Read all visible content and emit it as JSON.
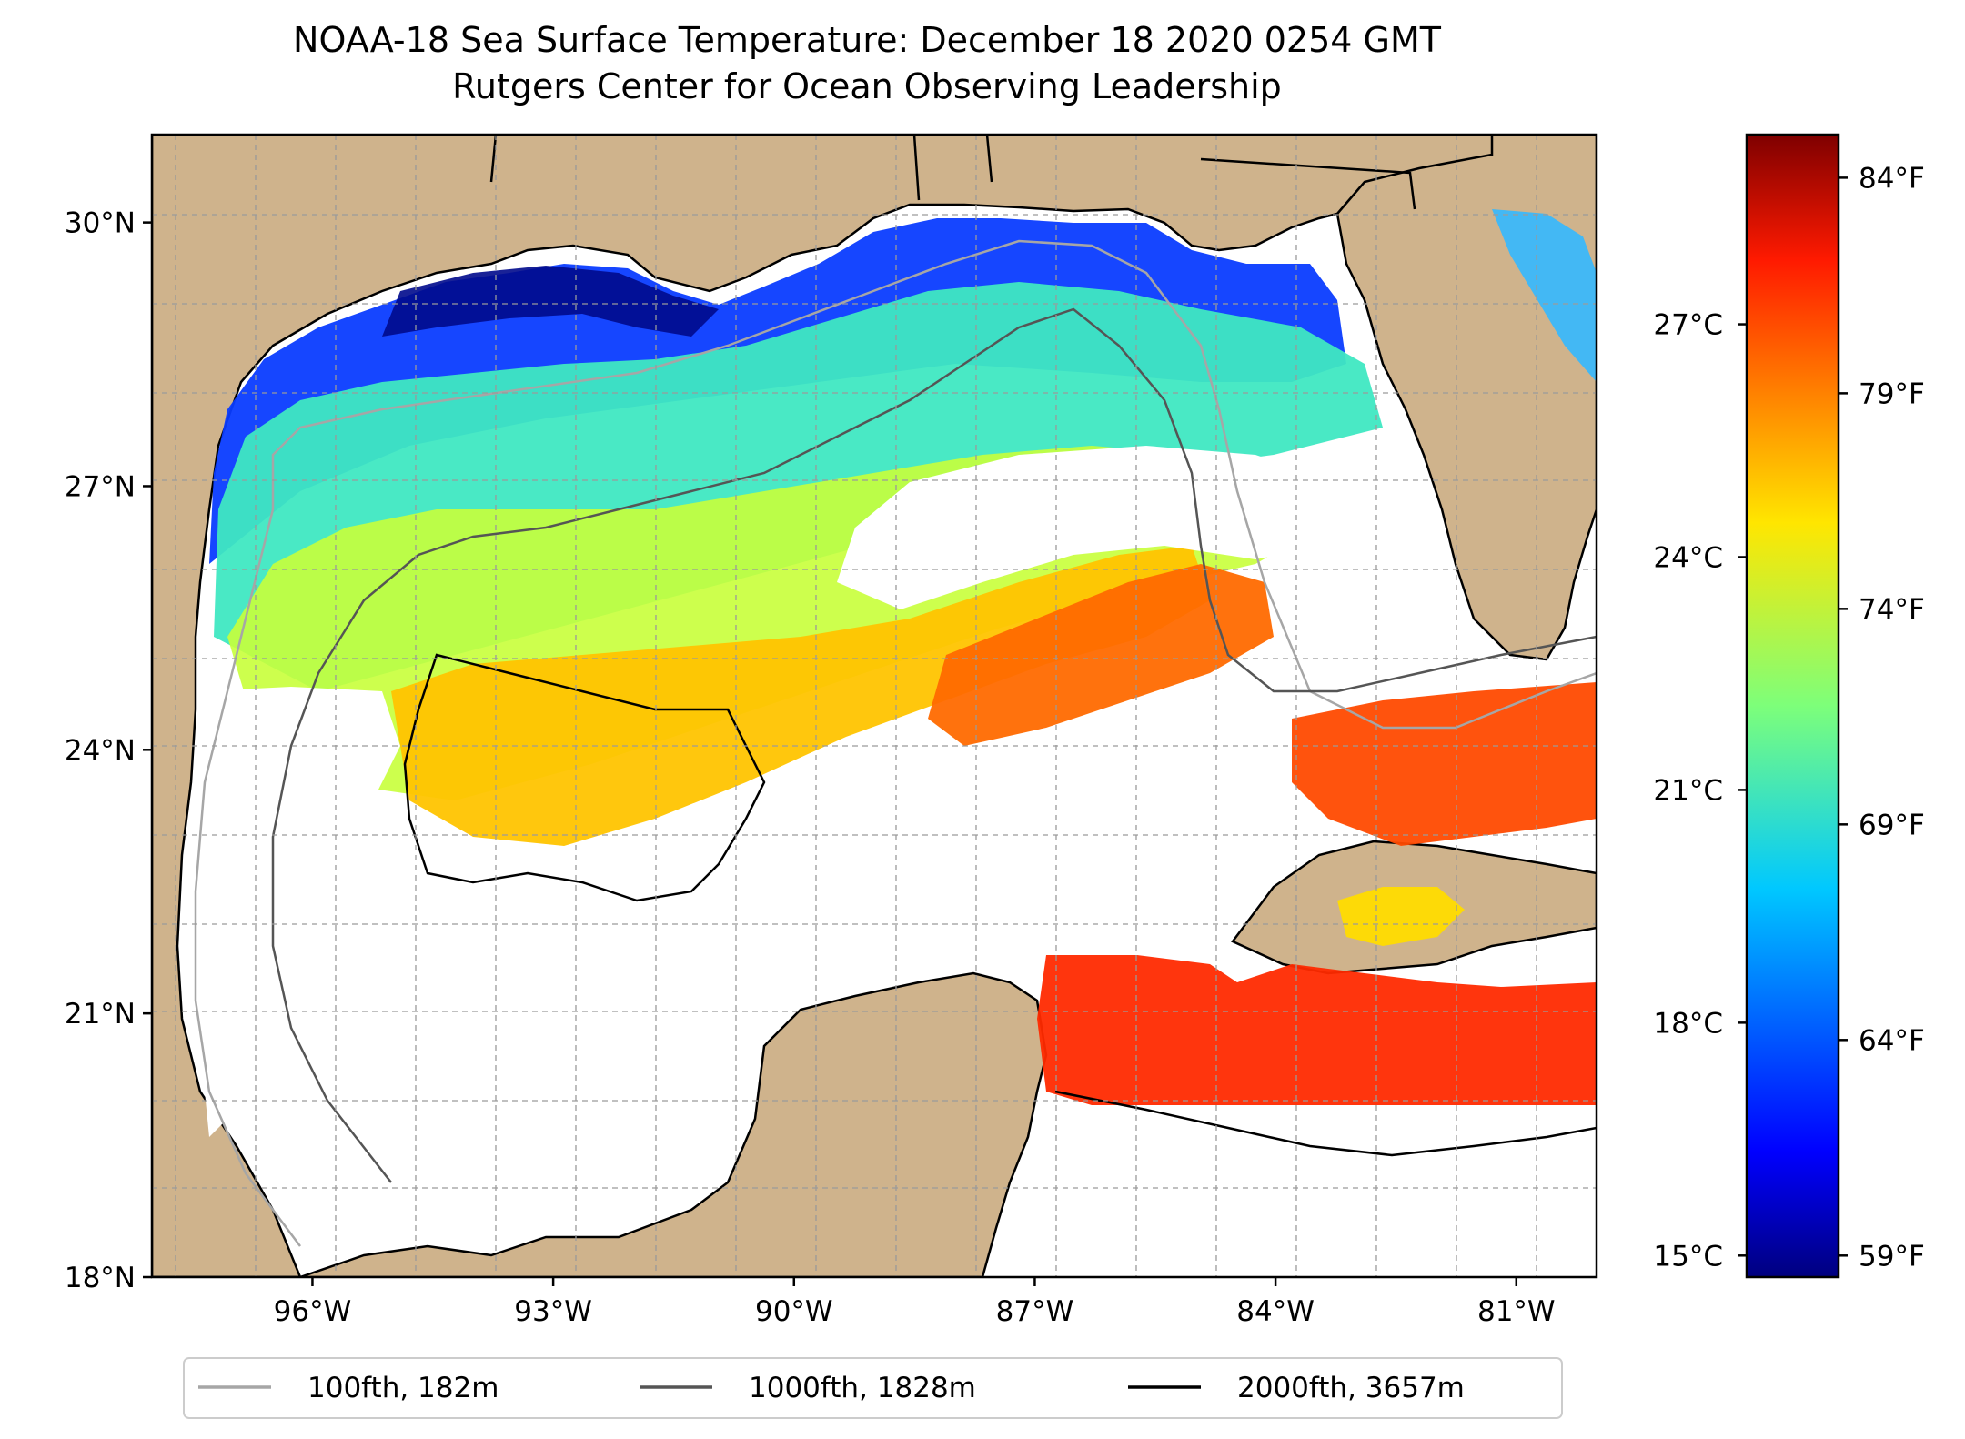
{
  "title": {
    "line1": "NOAA-18 Sea Surface Temperature: December 18 2020 0254 GMT",
    "line2": "Rutgers Center for Ocean Observing Leadership"
  },
  "map": {
    "lon_range": [
      -98,
      -80
    ],
    "lat_range": [
      18,
      31
    ],
    "lon_ticks": [
      {
        "value": -96,
        "label": "96°W"
      },
      {
        "value": -93,
        "label": "93°W"
      },
      {
        "value": -90,
        "label": "90°W"
      },
      {
        "value": -87,
        "label": "87°W"
      },
      {
        "value": -84,
        "label": "84°W"
      },
      {
        "value": -81,
        "label": "81°W"
      }
    ],
    "lat_ticks": [
      {
        "value": 18,
        "label": "18°N"
      },
      {
        "value": 21,
        "label": "21°N"
      },
      {
        "value": 24,
        "label": "24°N"
      },
      {
        "value": 27,
        "label": "27°N"
      },
      {
        "value": 30,
        "label": "30°N"
      }
    ],
    "gridlines": true,
    "land_color": "#cfb38c",
    "no_data_color": "#ffffff"
  },
  "colorbar": {
    "colormap": "jet",
    "celsius_ticks": [
      {
        "value": 15,
        "label": "15°C"
      },
      {
        "value": 18,
        "label": "18°C"
      },
      {
        "value": 21,
        "label": "21°C"
      },
      {
        "value": 24,
        "label": "24°C"
      },
      {
        "value": 27,
        "label": "27°C"
      }
    ],
    "fahrenheit_ticks": [
      {
        "value": 59,
        "label": "59°F"
      },
      {
        "value": 64,
        "label": "64°F"
      },
      {
        "value": 69,
        "label": "69°F"
      },
      {
        "value": 74,
        "label": "74°F"
      },
      {
        "value": 79,
        "label": "79°F"
      },
      {
        "value": 84,
        "label": "84°F"
      }
    ],
    "range_f": [
      58.5,
      85
    ]
  },
  "legend": {
    "items": [
      {
        "label": "100fth, 182m",
        "color": "#a6a6a6"
      },
      {
        "label": "1000fth, 1828m",
        "color": "#555555"
      },
      {
        "label": "2000fth, 3657m",
        "color": "#000000"
      }
    ]
  }
}
